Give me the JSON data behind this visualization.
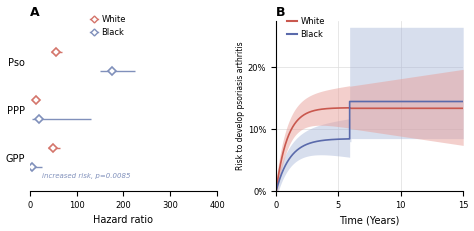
{
  "panel_A": {
    "title": "A",
    "xlabel": "Hazard ratio",
    "xlim": [
      0,
      400
    ],
    "xticks": [
      0,
      100,
      200,
      300,
      400
    ],
    "categories": [
      "GPP",
      "PPP",
      "Pso"
    ],
    "white": {
      "color": "#d4756b",
      "points": [
        50,
        12,
        55
      ],
      "ci_low": [
        38,
        5,
        45
      ],
      "ci_high": [
        65,
        20,
        68
      ]
    },
    "black": {
      "color": "#8090bb",
      "points": [
        5,
        20,
        175
      ],
      "ci_low": [
        1,
        5,
        150
      ],
      "ci_high": [
        25,
        130,
        225
      ]
    },
    "annotation": "increased risk, p=0.0085",
    "annotation_color": "#8090bb",
    "legend_white": "White",
    "legend_black": "Black"
  },
  "panel_B": {
    "title": "B",
    "xlabel": "Time (Years)",
    "ylabel": "Risk to develop psoriasis arthritis",
    "xlim": [
      0,
      15
    ],
    "ylim": [
      0,
      0.275
    ],
    "yticks": [
      0,
      0.1,
      0.2
    ],
    "ytick_labels": [
      "0%",
      "10%",
      "20%"
    ],
    "xticks": [
      0,
      5,
      10,
      15
    ],
    "white_color": "#c9584e",
    "black_color": "#5a6aab",
    "white_fill": "#e8a09a",
    "black_fill": "#9dadd4",
    "legend_white": "White",
    "legend_black": "Black"
  }
}
